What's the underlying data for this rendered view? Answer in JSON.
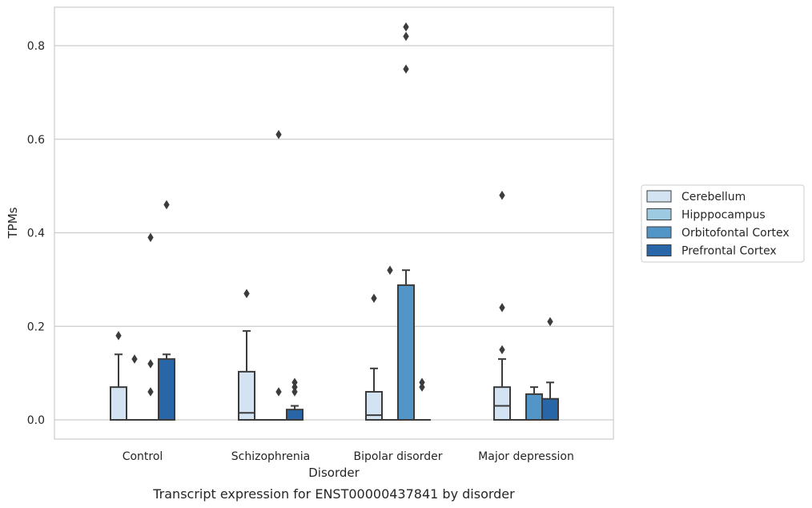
{
  "caption": "Transcript expression for ENST00000437841 by disorder",
  "chart_data": {
    "type": "box",
    "xlabel": "Disorder",
    "ylabel": "TPMs",
    "ylim": [
      -0.04,
      0.88
    ],
    "yticks": [
      "0.0",
      "0.2",
      "0.4",
      "0.6",
      "0.8"
    ],
    "grid": "horizontal",
    "legend_position": "right",
    "categories": [
      "Control",
      "Schizophrenia",
      "Bipolar disorder",
      "Major depression"
    ],
    "series": [
      {
        "name": "Cerebellum",
        "color": "#d3e3f2",
        "boxes": [
          {
            "q1": 0.0,
            "median": 0.0,
            "q3": 0.07,
            "whisker_low": 0.0,
            "whisker_high": 0.14,
            "outliers": [
              0.18
            ]
          },
          {
            "q1": 0.0,
            "median": 0.015,
            "q3": 0.103,
            "whisker_low": 0.0,
            "whisker_high": 0.19,
            "outliers": [
              0.27
            ]
          },
          {
            "q1": 0.0,
            "median": 0.01,
            "q3": 0.06,
            "whisker_low": 0.0,
            "whisker_high": 0.11,
            "outliers": [
              0.26
            ]
          },
          {
            "q1": 0.0,
            "median": 0.03,
            "q3": 0.07,
            "whisker_low": 0.0,
            "whisker_high": 0.13,
            "outliers": [
              0.15,
              0.24,
              0.48
            ]
          }
        ]
      },
      {
        "name": "Hipppocampus",
        "color": "#9ecae1",
        "boxes": [
          {
            "q1": 0.0,
            "median": 0.0,
            "q3": 0.0,
            "whisker_low": 0.0,
            "whisker_high": 0.0,
            "outliers": [
              0.13
            ]
          },
          {
            "q1": 0.0,
            "median": 0.0,
            "q3": 0.0,
            "whisker_low": 0.0,
            "whisker_high": 0.0,
            "outliers": []
          },
          {
            "q1": 0.0,
            "median": 0.0,
            "q3": 0.0,
            "whisker_low": 0.0,
            "whisker_high": 0.0,
            "outliers": [
              0.32
            ]
          },
          {
            "q1": 0.0,
            "median": 0.0,
            "q3": 0.0,
            "whisker_low": 0.0,
            "whisker_high": 0.0,
            "outliers": []
          }
        ]
      },
      {
        "name": "Orbitofontal Cortex",
        "color": "#5296c7",
        "boxes": [
          {
            "q1": 0.0,
            "median": 0.0,
            "q3": 0.0,
            "whisker_low": 0.0,
            "whisker_high": 0.0,
            "outliers": [
              0.06,
              0.12,
              0.39
            ]
          },
          {
            "q1": 0.0,
            "median": 0.0,
            "q3": 0.0,
            "whisker_low": 0.0,
            "whisker_high": 0.0,
            "outliers": [
              0.06,
              0.61
            ]
          },
          {
            "q1": 0.0,
            "median": 0.0,
            "q3": 0.288,
            "whisker_low": 0.0,
            "whisker_high": 0.32,
            "outliers": [
              0.75,
              0.82,
              0.84
            ]
          },
          {
            "q1": 0.0,
            "median": 0.0,
            "q3": 0.055,
            "whisker_low": 0.0,
            "whisker_high": 0.07,
            "outliers": []
          }
        ]
      },
      {
        "name": "Prefrontal Cortex",
        "color": "#2866a8",
        "boxes": [
          {
            "q1": 0.0,
            "median": 0.0,
            "q3": 0.13,
            "whisker_low": 0.0,
            "whisker_high": 0.14,
            "outliers": [
              0.46
            ]
          },
          {
            "q1": 0.0,
            "median": 0.0,
            "q3": 0.022,
            "whisker_low": 0.0,
            "whisker_high": 0.03,
            "outliers": [
              0.06,
              0.07,
              0.08
            ]
          },
          {
            "q1": 0.0,
            "median": 0.0,
            "q3": 0.0,
            "whisker_low": 0.0,
            "whisker_high": 0.0,
            "outliers": [
              0.07,
              0.08
            ]
          },
          {
            "q1": 0.0,
            "median": 0.0,
            "q3": 0.045,
            "whisker_low": 0.0,
            "whisker_high": 0.08,
            "outliers": [
              0.21
            ]
          }
        ]
      }
    ]
  }
}
